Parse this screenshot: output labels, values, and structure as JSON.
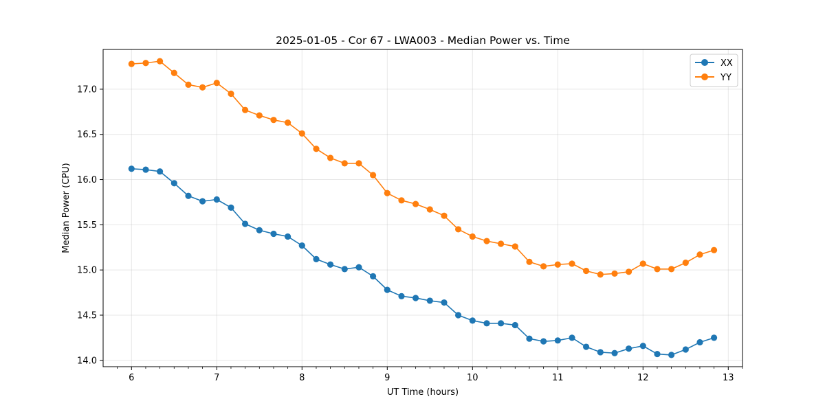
{
  "chart_data": {
    "type": "line",
    "title": "2025-01-05 - Cor 67 - LWA003 - Median Power vs. Time",
    "xlabel": "UT Time (hours)",
    "ylabel": "Median Power (CPU)",
    "xlim": [
      5.667,
      13.167
    ],
    "ylim": [
      13.93,
      17.44
    ],
    "xticks": [
      6,
      7,
      8,
      9,
      10,
      11,
      12,
      13
    ],
    "xtick_labels": [
      "6",
      "7",
      "8",
      "9",
      "10",
      "11",
      "12",
      "13"
    ],
    "yticks": [
      14.0,
      14.5,
      15.0,
      15.5,
      16.0,
      16.5,
      17.0
    ],
    "ytick_labels": [
      "14.0",
      "14.5",
      "15.0",
      "15.5",
      "16.0",
      "16.5",
      "17.0"
    ],
    "grid": true,
    "legend_position": "top-right",
    "x": [
      6.0,
      6.167,
      6.333,
      6.5,
      6.667,
      6.833,
      7.0,
      7.167,
      7.333,
      7.5,
      7.667,
      7.833,
      8.0,
      8.167,
      8.333,
      8.5,
      8.667,
      8.833,
      9.0,
      9.167,
      9.333,
      9.5,
      9.667,
      9.833,
      10.0,
      10.167,
      10.333,
      10.5,
      10.667,
      10.833,
      11.0,
      11.167,
      11.333,
      11.5,
      11.667,
      11.833,
      12.0,
      12.167,
      12.333,
      12.5,
      12.667,
      12.833
    ],
    "series": [
      {
        "name": "XX",
        "color": "#1f77b4",
        "values": [
          16.12,
          16.11,
          16.09,
          15.96,
          15.82,
          15.76,
          15.78,
          15.69,
          15.51,
          15.44,
          15.4,
          15.37,
          15.27,
          15.12,
          15.06,
          15.01,
          15.03,
          14.93,
          14.78,
          14.71,
          14.69,
          14.66,
          14.64,
          14.5,
          14.44,
          14.41,
          14.41,
          14.39,
          14.24,
          14.21,
          14.22,
          14.25,
          14.15,
          14.09,
          14.08,
          14.13,
          14.16,
          14.07,
          14.06,
          14.12,
          14.2,
          14.25
        ]
      },
      {
        "name": "YY",
        "color": "#ff7f0e",
        "values": [
          17.28,
          17.29,
          17.31,
          17.18,
          17.05,
          17.02,
          17.07,
          16.95,
          16.77,
          16.71,
          16.66,
          16.63,
          16.51,
          16.34,
          16.24,
          16.18,
          16.18,
          16.05,
          15.85,
          15.77,
          15.73,
          15.67,
          15.6,
          15.45,
          15.37,
          15.32,
          15.29,
          15.26,
          15.09,
          15.04,
          15.06,
          15.07,
          14.99,
          14.95,
          14.96,
          14.98,
          15.07,
          15.01,
          15.01,
          15.08,
          15.17,
          15.22
        ]
      }
    ]
  }
}
